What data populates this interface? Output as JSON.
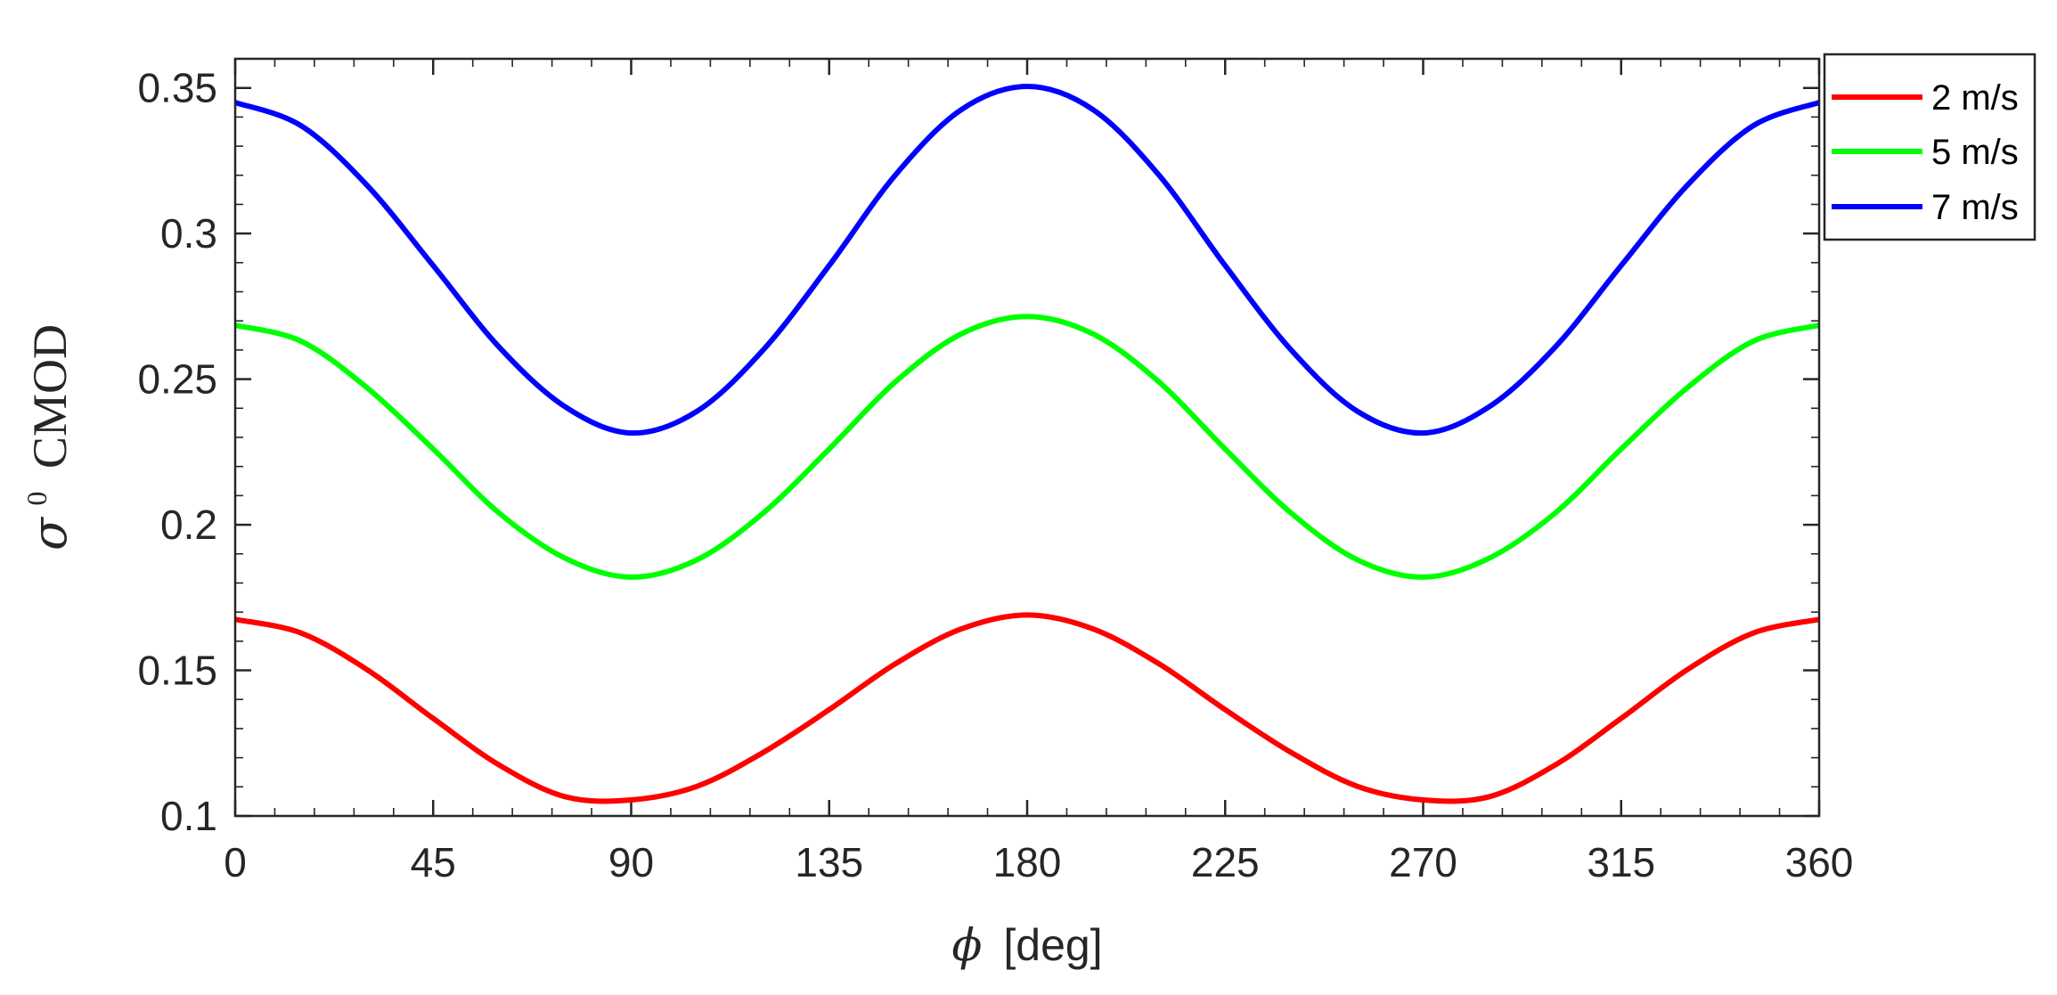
{
  "chart_data": {
    "type": "line",
    "xlabel_symbol": "ϕ",
    "xlabel_text": "[deg]",
    "ylabel_symbol": "σ",
    "ylabel_superscript": "0",
    "ylabel_text": "CMOD",
    "xlim": [
      0,
      360
    ],
    "ylim": [
      0.1,
      0.36
    ],
    "xticks": [
      0,
      45,
      90,
      135,
      180,
      225,
      270,
      315,
      360
    ],
    "xtick_labels": [
      "0",
      "45",
      "90",
      "135",
      "180",
      "225",
      "270",
      "315",
      "360"
    ],
    "yticks": [
      0.1,
      0.15,
      0.2,
      0.25,
      0.3,
      0.35
    ],
    "ytick_labels": [
      "0.1",
      "0.15",
      "0.2",
      "0.25",
      "0.3",
      "0.35"
    ],
    "grid": false,
    "legend_position": "outside-top-right",
    "x": [
      0,
      15,
      30,
      45,
      60,
      75,
      90,
      105,
      120,
      135,
      150,
      165,
      180,
      195,
      210,
      225,
      240,
      255,
      270,
      285,
      300,
      315,
      330,
      345,
      360
    ],
    "series": [
      {
        "name": "2 m/s",
        "color": "#ff0000",
        "values": [
          0.1675,
          0.1628,
          0.1502,
          0.1335,
          0.1175,
          0.1066,
          0.1055,
          0.1102,
          0.1218,
          0.1365,
          0.1522,
          0.1642,
          0.169,
          0.1642,
          0.1522,
          0.1365,
          0.1218,
          0.1102,
          0.1055,
          0.1066,
          0.1175,
          0.1335,
          0.1502,
          0.1628,
          0.1675
        ]
      },
      {
        "name": "5 m/s",
        "color": "#00ff00",
        "values": [
          0.2685,
          0.263,
          0.247,
          0.226,
          0.204,
          0.1885,
          0.182,
          0.188,
          0.204,
          0.226,
          0.249,
          0.2655,
          0.2715,
          0.2655,
          0.249,
          0.226,
          0.204,
          0.188,
          0.182,
          0.1885,
          0.204,
          0.226,
          0.247,
          0.263,
          0.2685
        ]
      },
      {
        "name": "7 m/s",
        "color": "#0000ff",
        "values": [
          0.345,
          0.337,
          0.3165,
          0.289,
          0.261,
          0.2405,
          0.2315,
          0.239,
          0.26,
          0.289,
          0.32,
          0.3425,
          0.3505,
          0.3425,
          0.32,
          0.289,
          0.26,
          0.239,
          0.2315,
          0.2405,
          0.261,
          0.289,
          0.3165,
          0.337,
          0.345
        ]
      }
    ]
  }
}
